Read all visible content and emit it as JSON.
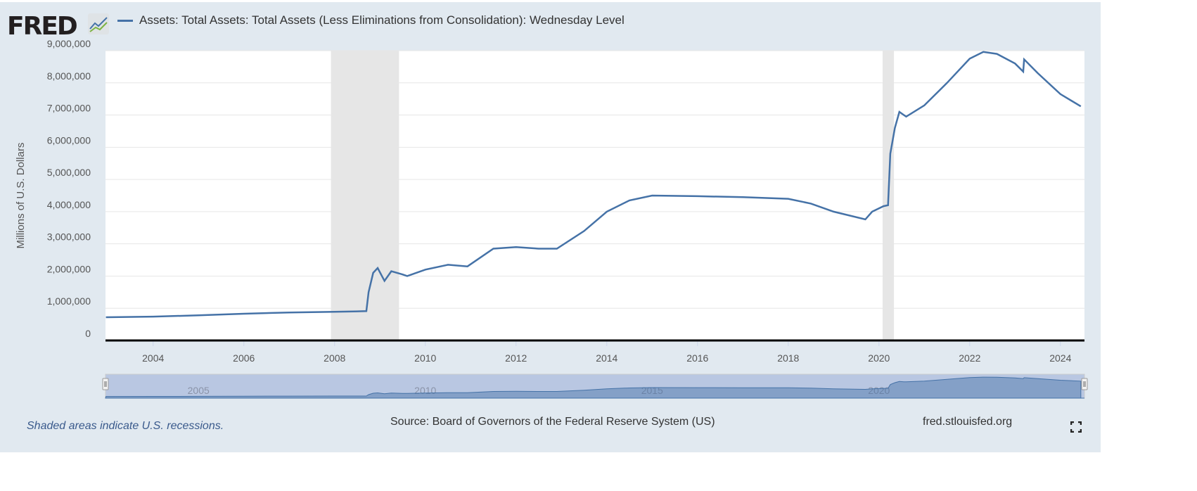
{
  "logo": {
    "text": "FRED"
  },
  "chart_data": {
    "type": "line",
    "title": "",
    "series": [
      {
        "name": "Assets: Total Assets: Total Assets (Less Eliminations from Consolidation): Wednesday Level",
        "color": "#4572a7",
        "points": [
          [
            2002.96,
            720000
          ],
          [
            2004,
            740000
          ],
          [
            2005,
            780000
          ],
          [
            2006,
            830000
          ],
          [
            2007,
            870000
          ],
          [
            2008,
            890000
          ],
          [
            2008.7,
            910000
          ],
          [
            2008.75,
            1500000
          ],
          [
            2008.85,
            2100000
          ],
          [
            2008.95,
            2250000
          ],
          [
            2009.1,
            1850000
          ],
          [
            2009.25,
            2150000
          ],
          [
            2009.5,
            2050000
          ],
          [
            2009.6,
            2000000
          ],
          [
            2010,
            2200000
          ],
          [
            2010.5,
            2350000
          ],
          [
            2010.93,
            2300000
          ],
          [
            2011.5,
            2850000
          ],
          [
            2012,
            2900000
          ],
          [
            2012.5,
            2850000
          ],
          [
            2012.9,
            2850000
          ],
          [
            2013.5,
            3400000
          ],
          [
            2014,
            4000000
          ],
          [
            2014.5,
            4350000
          ],
          [
            2015,
            4500000
          ],
          [
            2016,
            4480000
          ],
          [
            2017,
            4450000
          ],
          [
            2018,
            4400000
          ],
          [
            2018.5,
            4250000
          ],
          [
            2019,
            4000000
          ],
          [
            2019.7,
            3760000
          ],
          [
            2019.85,
            4000000
          ],
          [
            2020.1,
            4170000
          ],
          [
            2020.2,
            4200000
          ],
          [
            2020.25,
            5800000
          ],
          [
            2020.35,
            6600000
          ],
          [
            2020.45,
            7100000
          ],
          [
            2020.55,
            7000000
          ],
          [
            2020.6,
            6950000
          ],
          [
            2021,
            7300000
          ],
          [
            2021.5,
            8000000
          ],
          [
            2022,
            8750000
          ],
          [
            2022.3,
            8960000
          ],
          [
            2022.6,
            8900000
          ],
          [
            2023,
            8600000
          ],
          [
            2023.18,
            8350000
          ],
          [
            2023.2,
            8730000
          ],
          [
            2023.5,
            8300000
          ],
          [
            2024,
            7650000
          ],
          [
            2024.45,
            7270000
          ]
        ]
      }
    ],
    "ylabel": "Millions of U.S. Dollars",
    "xlim": [
      2002.95,
      2024.53
    ],
    "ylim": [
      0,
      9000000
    ],
    "yticks": [
      "0",
      "1,000,000",
      "2,000,000",
      "3,000,000",
      "4,000,000",
      "5,000,000",
      "6,000,000",
      "7,000,000",
      "8,000,000",
      "9,000,000"
    ],
    "xticks": [
      "2004",
      "2006",
      "2008",
      "2010",
      "2012",
      "2014",
      "2016",
      "2018",
      "2020",
      "2022",
      "2024"
    ],
    "recessions": [
      [
        2007.92,
        2009.42
      ],
      [
        2020.08,
        2020.33
      ]
    ],
    "navigator_labels": [
      "2005",
      "2010",
      "2015",
      "2020"
    ],
    "grid": true,
    "legend": "top-left"
  },
  "footer": {
    "note": "Shaded areas indicate U.S. recessions.",
    "source": "Source: Board of Governors of the Federal Reserve System (US)",
    "site": "fred.stlouisfed.org"
  }
}
